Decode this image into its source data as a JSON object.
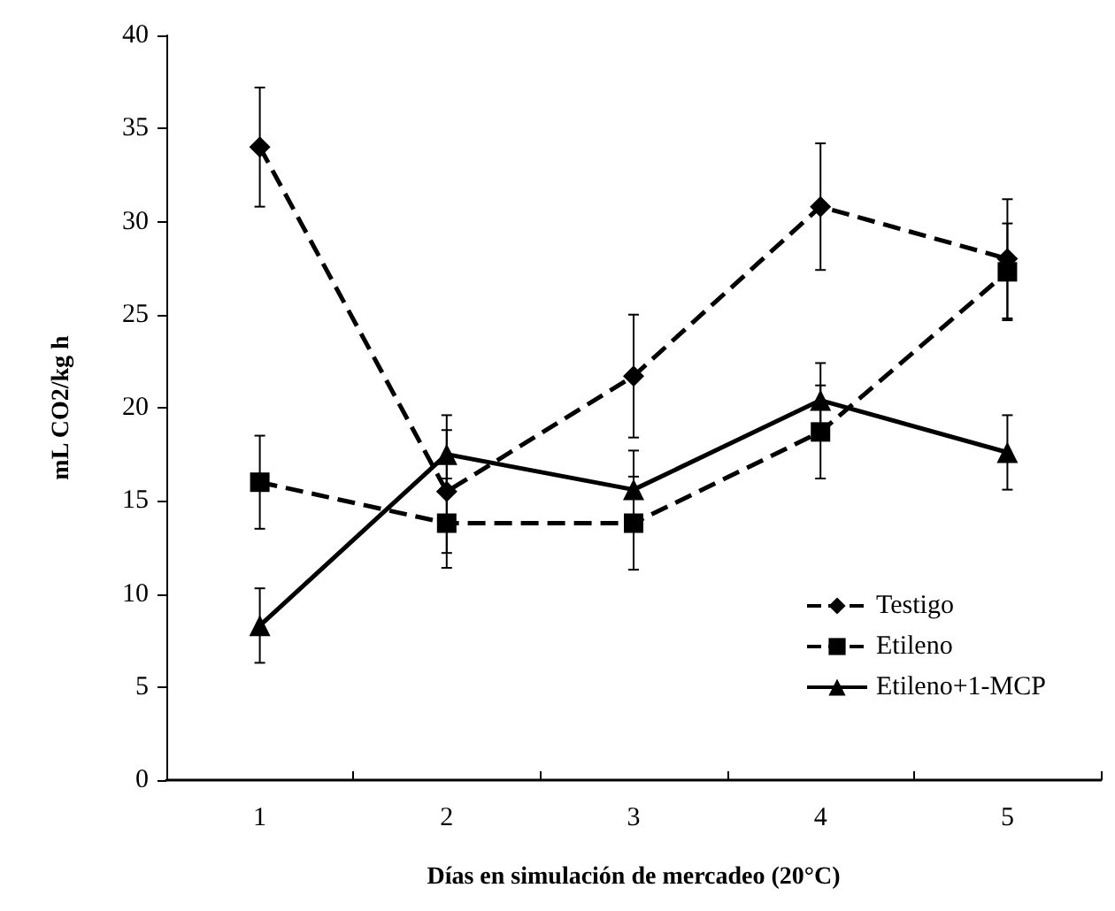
{
  "chart_data": {
    "type": "line",
    "xlabel": "Días en simulación de mercadeo (20°C)",
    "ylabel": "mL CO2/kg h",
    "categories": [
      "1",
      "2",
      "3",
      "4",
      "5"
    ],
    "series": [
      {
        "name": "Testigo",
        "color": "#000000",
        "values": [
          34.0,
          15.5,
          21.7,
          30.8,
          28.0
        ],
        "errors": [
          3.2,
          3.3,
          3.3,
          3.4,
          3.2
        ],
        "marker": "diamond",
        "line_style": "dashed"
      },
      {
        "name": "Etileno",
        "color": "#000000",
        "values": [
          16.0,
          13.8,
          13.8,
          18.7,
          27.3
        ],
        "errors": [
          2.5,
          2.4,
          2.5,
          2.5,
          2.6
        ],
        "marker": "square",
        "line_style": "dashed"
      },
      {
        "name": "Etileno+1-MCP",
        "color": "#000000",
        "values": [
          8.3,
          17.5,
          15.6,
          20.4,
          17.6
        ],
        "errors": [
          2.0,
          2.1,
          2.1,
          2.0,
          2.0
        ],
        "marker": "triangle",
        "line_style": "solid"
      }
    ],
    "ylim": [
      0,
      40
    ],
    "yticks": [
      0,
      5,
      10,
      15,
      20,
      25,
      30,
      35,
      40
    ],
    "grid": false,
    "legend": "bottom right"
  }
}
